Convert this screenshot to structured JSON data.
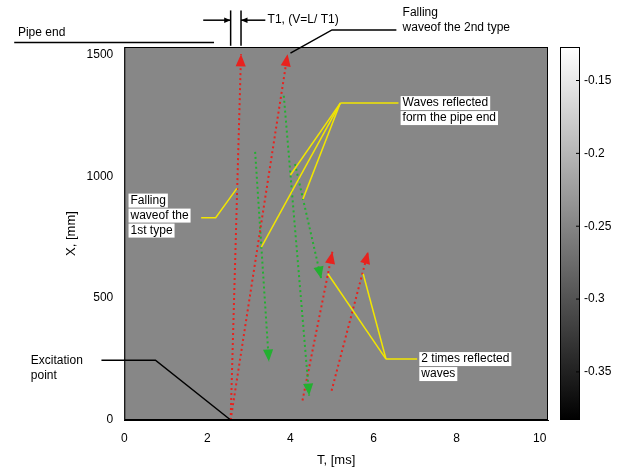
{
  "chart_data": {
    "type": "line",
    "x_label": "T, [ms]",
    "y_label": "X, [mm]",
    "xlim": [
      0,
      10.2
    ],
    "ylim": [
      0,
      1530
    ],
    "xticks": [
      0,
      2,
      4,
      6,
      8,
      10
    ],
    "yticks": [
      0,
      500,
      1000,
      1500
    ],
    "grid": false,
    "series": [
      {
        "color": "#e8221e",
        "line_style": "dotted",
        "marker": "arrow",
        "x": [
          2.56,
          2.81
        ],
        "values": [
          0,
          1500
        ]
      },
      {
        "color": "#e8221e",
        "line_style": "dotted",
        "marker": "arrow",
        "x": [
          2.56,
          3.93
        ],
        "values": [
          0,
          1500
        ]
      },
      {
        "color": "#22b030",
        "line_style": "dotted",
        "marker": "arrow",
        "x": [
          3.15,
          3.48
        ],
        "values": [
          1100,
          240
        ]
      },
      {
        "color": "#22b030",
        "line_style": "dotted",
        "marker": "arrow",
        "x": [
          3.84,
          4.45
        ],
        "values": [
          1330,
          100
        ]
      },
      {
        "color": "#22b030",
        "line_style": "dotted",
        "marker": "arrow",
        "x": [
          4.11,
          4.74
        ],
        "values": [
          1050,
          580
        ]
      },
      {
        "color": "#e8221e",
        "line_style": "dotted",
        "marker": "arrow",
        "x": [
          4.29,
          5.01
        ],
        "values": [
          80,
          690
        ]
      },
      {
        "color": "#e8221e",
        "line_style": "dotted",
        "marker": "arrow",
        "x": [
          4.99,
          5.87
        ],
        "values": [
          120,
          690
        ]
      }
    ],
    "annotations": [
      {
        "text": "Pipe end"
      },
      {
        "text": "T1, (V=L/ T1)"
      },
      {
        "text": "Falling waveof the 2nd type"
      },
      {
        "text": "Waves reflected form the pipe end"
      },
      {
        "text": "Falling waveof the 1st type"
      },
      {
        "text": "2 times reflected waves"
      },
      {
        "text": "Excitation point"
      }
    ],
    "colorbar": {
      "range": [
        -0.383,
        -0.127
      ],
      "ticks": [
        -0.15,
        -0.2,
        -0.25,
        -0.3,
        -0.35
      ]
    }
  }
}
